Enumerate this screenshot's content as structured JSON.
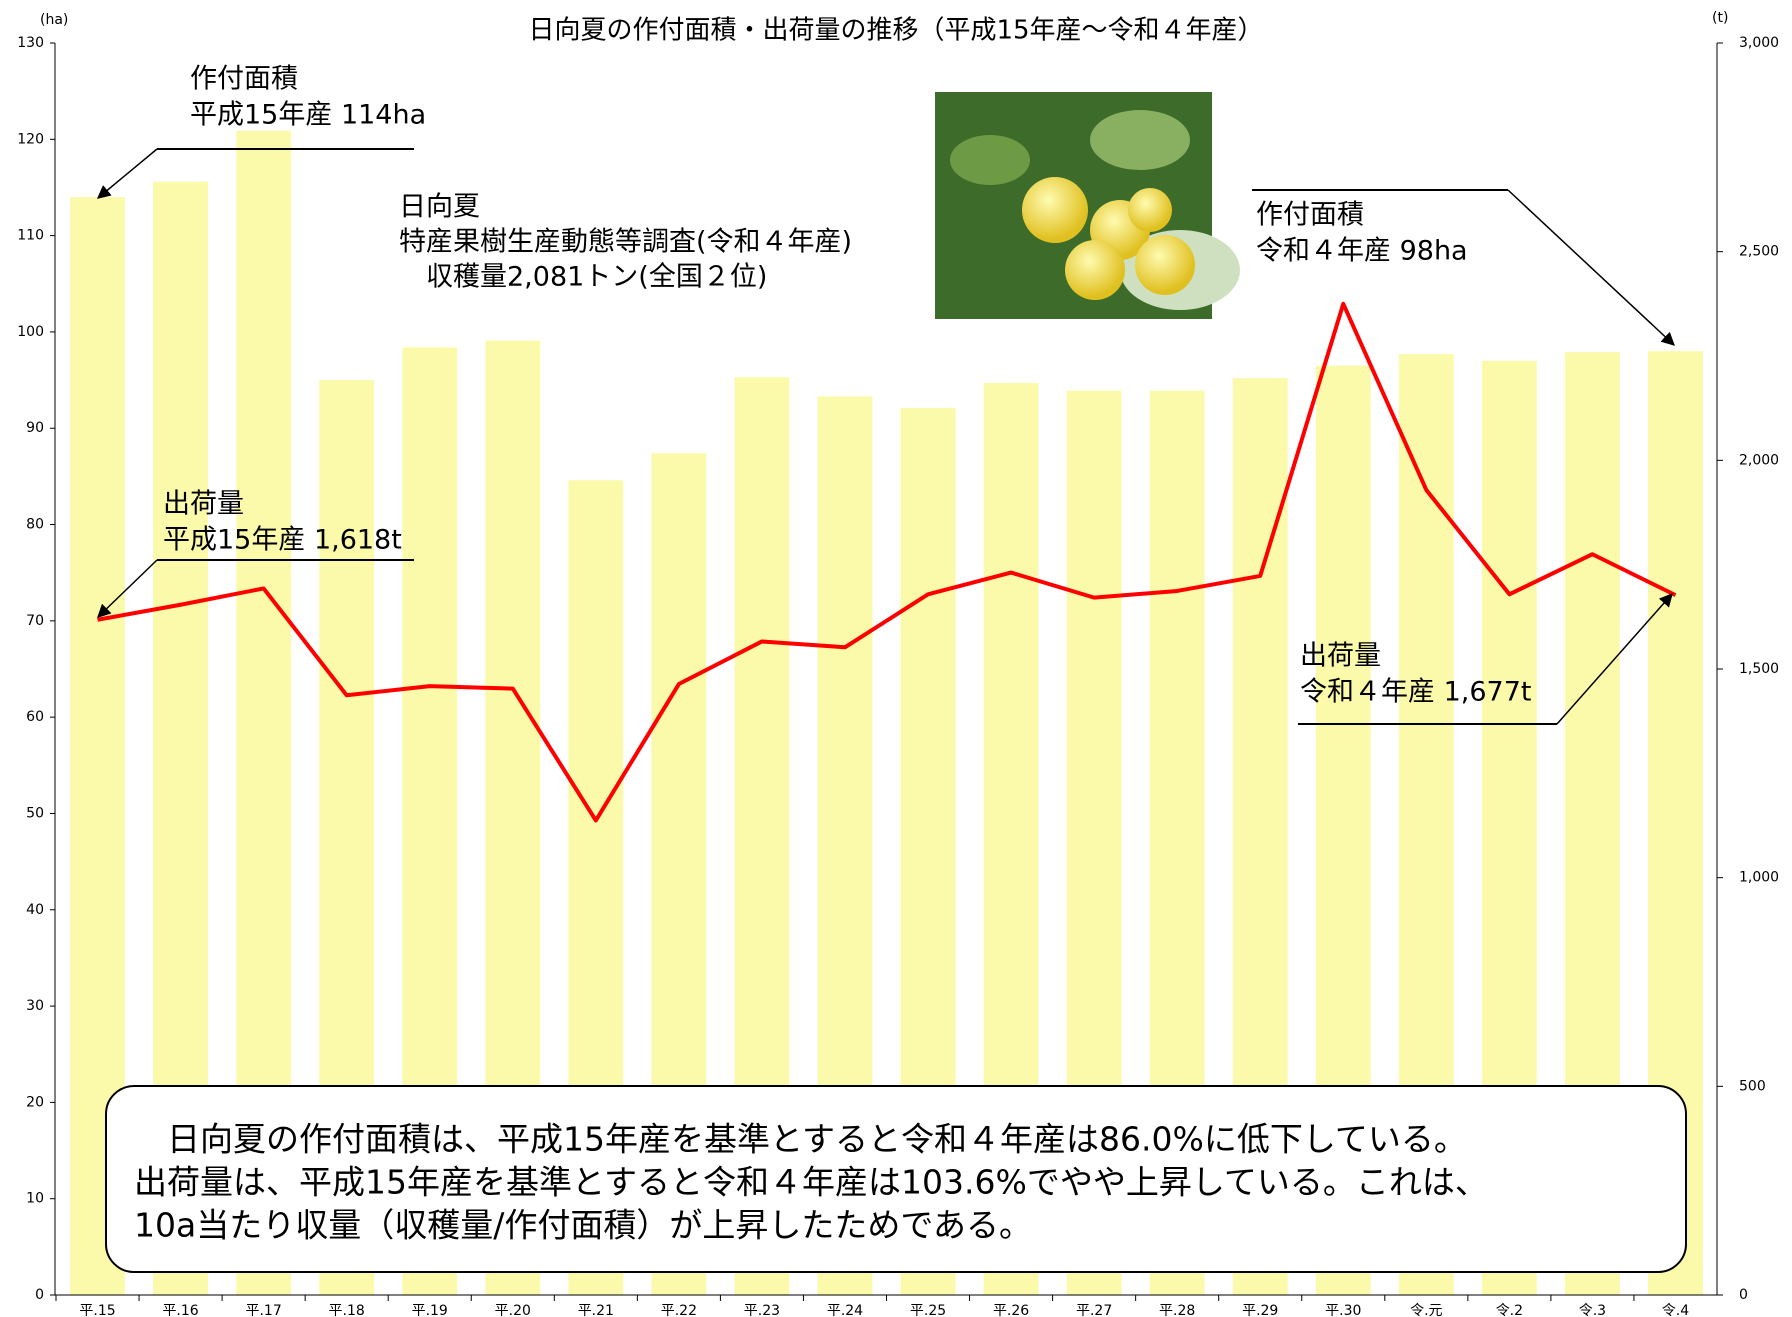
{
  "chart_data": {
    "type": "bar_line",
    "title": "日向夏の作付面積・出荷量の推移（平成15年産～令和４年産）",
    "y_unit": "(ha)",
    "y2_unit": "(t)",
    "categories": [
      "平.15",
      "平.16",
      "平.17",
      "平.18",
      "平.19",
      "平.20",
      "平.21",
      "平.22",
      "平.23",
      "平.24",
      "平.25",
      "平.26",
      "平.27",
      "平.28",
      "平.29",
      "平.30",
      "令.元",
      "令.2",
      "令.3",
      "令.4"
    ],
    "series": [
      {
        "name": "作付面積",
        "type": "bar",
        "color": "#fafaaa",
        "values": [
          114,
          115.6,
          120.9,
          95.0,
          98.4,
          99.1,
          84.6,
          87.4,
          95.3,
          93.3,
          92.1,
          94.7,
          93.9,
          93.9,
          95.2,
          96.5,
          97.7,
          97.0,
          97.9,
          98
        ]
      },
      {
        "name": "出荷量",
        "type": "line",
        "axis": "y2",
        "color": "#ff0000",
        "values": [
          1618,
          1654,
          1693,
          1437,
          1459,
          1453,
          1137,
          1464,
          1566,
          1552,
          1679,
          1731,
          1671,
          1687,
          1723,
          2375,
          1929,
          1679,
          1775,
          1677
        ]
      }
    ],
    "ylim": [
      0,
      130
    ],
    "yticks": [
      0,
      10,
      20,
      30,
      40,
      50,
      60,
      70,
      80,
      90,
      100,
      110,
      120,
      130
    ],
    "y2lim": [
      0,
      3000
    ],
    "y2ticks": [
      0,
      500,
      {
        "value": 1000,
        "label": "1,000"
      },
      {
        "value": 1500,
        "label": "1,500"
      },
      {
        "value": 2000,
        "label": "2,000"
      },
      {
        "value": 2500,
        "label": "2,500"
      },
      {
        "value": 3000,
        "label": "3,000"
      }
    ],
    "annotations": [
      {
        "lines": [
          "作付面積",
          "平成15年産 114ha"
        ]
      },
      {
        "lines": [
          "出荷量",
          "平成15年産 1,618t"
        ]
      },
      {
        "lines": [
          "作付面積",
          "令和４年産 98ha"
        ]
      },
      {
        "lines": [
          "出荷量",
          "令和４年産 1,677t"
        ]
      }
    ],
    "caption": [
      "日向夏",
      "特産果樹生産動態等調査(令和４年産)",
      "　収穫量2,081トン(全国２位)"
    ],
    "summary": [
      "　日向夏の作付面積は、平成15年産を基準とすると令和４年産は86.0%に低下している。",
      "出荷量は、平成15年産を基準とすると令和４年産は103.6%でやや上昇している。これは、",
      "10a当たり収量（収穫量/作付面積）が上昇したためである。"
    ]
  }
}
